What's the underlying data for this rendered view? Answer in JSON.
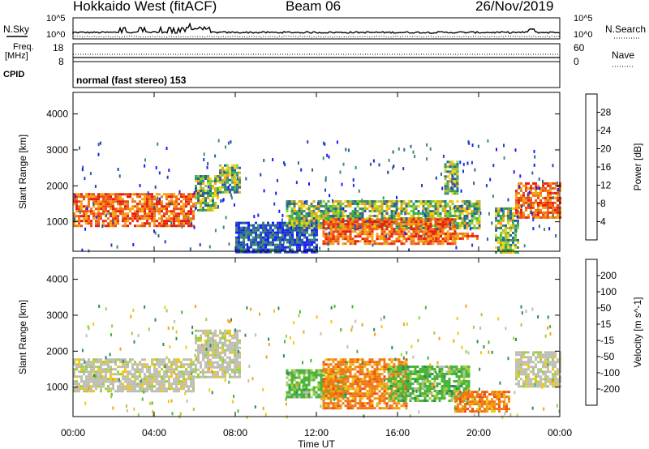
{
  "header": {
    "station": "Hokkaido West (fitACF)",
    "beam": "Beam 06",
    "date": "26/Nov/2019"
  },
  "left_labels": {
    "nsky": "N.Sky",
    "freq_line1": "Freq.",
    "freq_line2": "[MHz]",
    "cpid": "CPID"
  },
  "right_labels": {
    "nsearch": "N.Search",
    "nave": "Nave"
  },
  "scales": {
    "noise_top": "10^5",
    "noise_bottom": "10^0",
    "freq_top": "18",
    "freq_bottom": "8",
    "nave_top": "60",
    "nave_bottom": "0"
  },
  "mode_text": "normal (fast stereo) 153",
  "colors": {
    "power": [
      "#1a1aff",
      "#1e3fc8",
      "#2a6496",
      "#3f8c6e",
      "#3cb44b",
      "#8ccf3c",
      "#f5d214",
      "#f5a514",
      "#f07814",
      "#f04b14",
      "#e61e14"
    ],
    "velocity": [
      "#1e3cc8",
      "#1e64aa",
      "#2e8c5a",
      "#4bb43c",
      "#9ccf3c",
      "#bebeb4",
      "#f0c814",
      "#f5a014",
      "#f07814",
      "#f04b14",
      "#e61414"
    ]
  },
  "chart_data": [
    {
      "type": "heatmap",
      "panel": "power",
      "x_ticks": [
        "00:00",
        "04:00",
        "08:00",
        "12:00",
        "16:00",
        "20:00",
        "00:00"
      ],
      "xlim_hours": [
        0,
        24
      ],
      "ylabel": "Slant Range [km]",
      "ylim_km": [
        180,
        4600
      ],
      "y_ticks": [
        1000,
        2000,
        3000,
        4000
      ],
      "colorbar": {
        "label": "Power [dB]",
        "range": [
          0,
          32
        ],
        "ticks": [
          "4",
          "8",
          "12",
          "16",
          "20",
          "24",
          "28"
        ]
      },
      "regions": [
        {
          "t": [
            0.0,
            6.0
          ],
          "r": [
            900,
            1800
          ],
          "level": "high"
        },
        {
          "t": [
            6.0,
            7.2
          ],
          "r": [
            1300,
            2300
          ],
          "level": "mid"
        },
        {
          "t": [
            7.2,
            8.2
          ],
          "r": [
            1800,
            2600
          ],
          "level": "mid"
        },
        {
          "t": [
            8.0,
            12.0
          ],
          "r": [
            180,
            1000
          ],
          "level": "low"
        },
        {
          "t": [
            10.5,
            20.0
          ],
          "r": [
            800,
            1600
          ],
          "level": "mid"
        },
        {
          "t": [
            12.3,
            18.8
          ],
          "r": [
            400,
            1100
          ],
          "level": "high"
        },
        {
          "t": [
            17.0,
            20.0
          ],
          "r": [
            500,
            700
          ],
          "level": "high"
        },
        {
          "t": [
            18.3,
            19.0
          ],
          "r": [
            1800,
            2700
          ],
          "level": "mid"
        },
        {
          "t": [
            20.8,
            22.0
          ],
          "r": [
            180,
            1400
          ],
          "level": "mid"
        },
        {
          "t": [
            21.8,
            24.0
          ],
          "r": [
            1100,
            2100
          ],
          "level": "high"
        }
      ]
    },
    {
      "type": "heatmap",
      "panel": "velocity",
      "x_ticks": [
        "00:00",
        "04:00",
        "08:00",
        "12:00",
        "16:00",
        "20:00",
        "00:00"
      ],
      "xlabel": "Time UT",
      "xlim_hours": [
        0,
        24
      ],
      "ylabel": "Slant Range [km]",
      "ylim_km": [
        180,
        4600
      ],
      "y_ticks": [
        1000,
        2000,
        3000,
        4000
      ],
      "colorbar": {
        "label": "Velocity [m s^-1]",
        "ticks": [
          "200",
          "100",
          "50",
          "15",
          "-15",
          "-50",
          "-100",
          "-200"
        ]
      },
      "regions": [
        {
          "t": [
            0.0,
            6.0
          ],
          "r": [
            900,
            1800
          ],
          "level": "near-zero"
        },
        {
          "t": [
            6.0,
            8.2
          ],
          "r": [
            1300,
            2600
          ],
          "level": "near-zero"
        },
        {
          "t": [
            10.5,
            13.5
          ],
          "r": [
            700,
            1500
          ],
          "level": "positive"
        },
        {
          "t": [
            12.3,
            16.5
          ],
          "r": [
            400,
            1800
          ],
          "level": "negative"
        },
        {
          "t": [
            15.5,
            19.5
          ],
          "r": [
            600,
            1600
          ],
          "level": "positive"
        },
        {
          "t": [
            18.8,
            21.5
          ],
          "r": [
            300,
            900
          ],
          "level": "negative"
        },
        {
          "t": [
            21.8,
            24.0
          ],
          "r": [
            1000,
            2000
          ],
          "level": "near-zero"
        }
      ]
    }
  ]
}
